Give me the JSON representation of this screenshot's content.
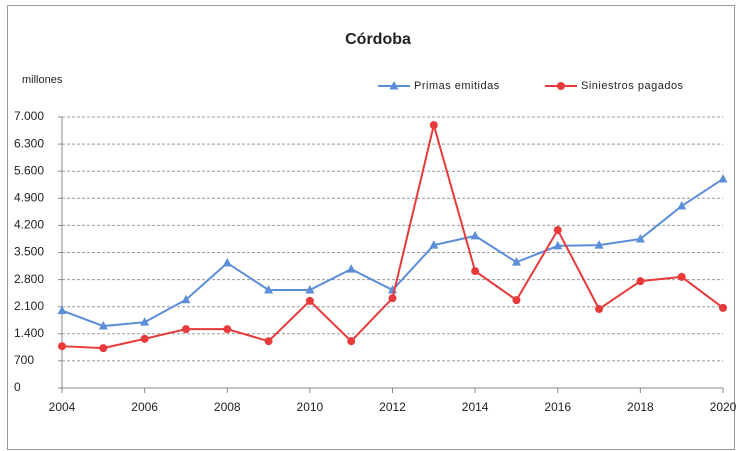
{
  "chart_data": {
    "type": "line",
    "title": "Córdoba",
    "ylabel": "millones",
    "x": [
      2004,
      2005,
      2006,
      2007,
      2008,
      2009,
      2010,
      2011,
      2012,
      2013,
      2014,
      2015,
      2016,
      2017,
      2018,
      2019,
      2020
    ],
    "series": [
      {
        "name": "Primas emitidas",
        "color": "#5b8dd9",
        "marker": "triangle",
        "values": [
          2000,
          1600,
          1700,
          2280,
          3230,
          2530,
          2530,
          3070,
          2530,
          3690,
          3930,
          3250,
          3670,
          3690,
          3850,
          4700,
          5400
        ]
      },
      {
        "name": "Siniestros pagados",
        "color": "#e83a3a",
        "marker": "circle",
        "values": [
          1080,
          1030,
          1270,
          1520,
          1520,
          1210,
          2250,
          1210,
          2320,
          6790,
          3020,
          2270,
          4080,
          2040,
          2760,
          2870,
          2070
        ]
      }
    ],
    "xlim": [
      2004,
      2020
    ],
    "xticks": [
      2004,
      2006,
      2008,
      2010,
      2012,
      2014,
      2016,
      2018,
      2020
    ],
    "ylim": [
      0,
      7000
    ],
    "yticks": [
      0,
      700,
      {
        "value": 1400,
        "label": "1.400"
      },
      {
        "value": 2100,
        "label": "2.100"
      },
      {
        "value": 2800,
        "label": "2.800"
      },
      {
        "value": 3500,
        "label": "3.500"
      },
      {
        "value": 4200,
        "label": "4.200"
      },
      {
        "value": 4900,
        "label": "4.900"
      },
      {
        "value": 5600,
        "label": "5.600"
      },
      {
        "value": 6300,
        "label": "6.300"
      },
      {
        "value": 7000,
        "label": "7.000"
      }
    ],
    "grid": true,
    "legend": "top-right"
  }
}
